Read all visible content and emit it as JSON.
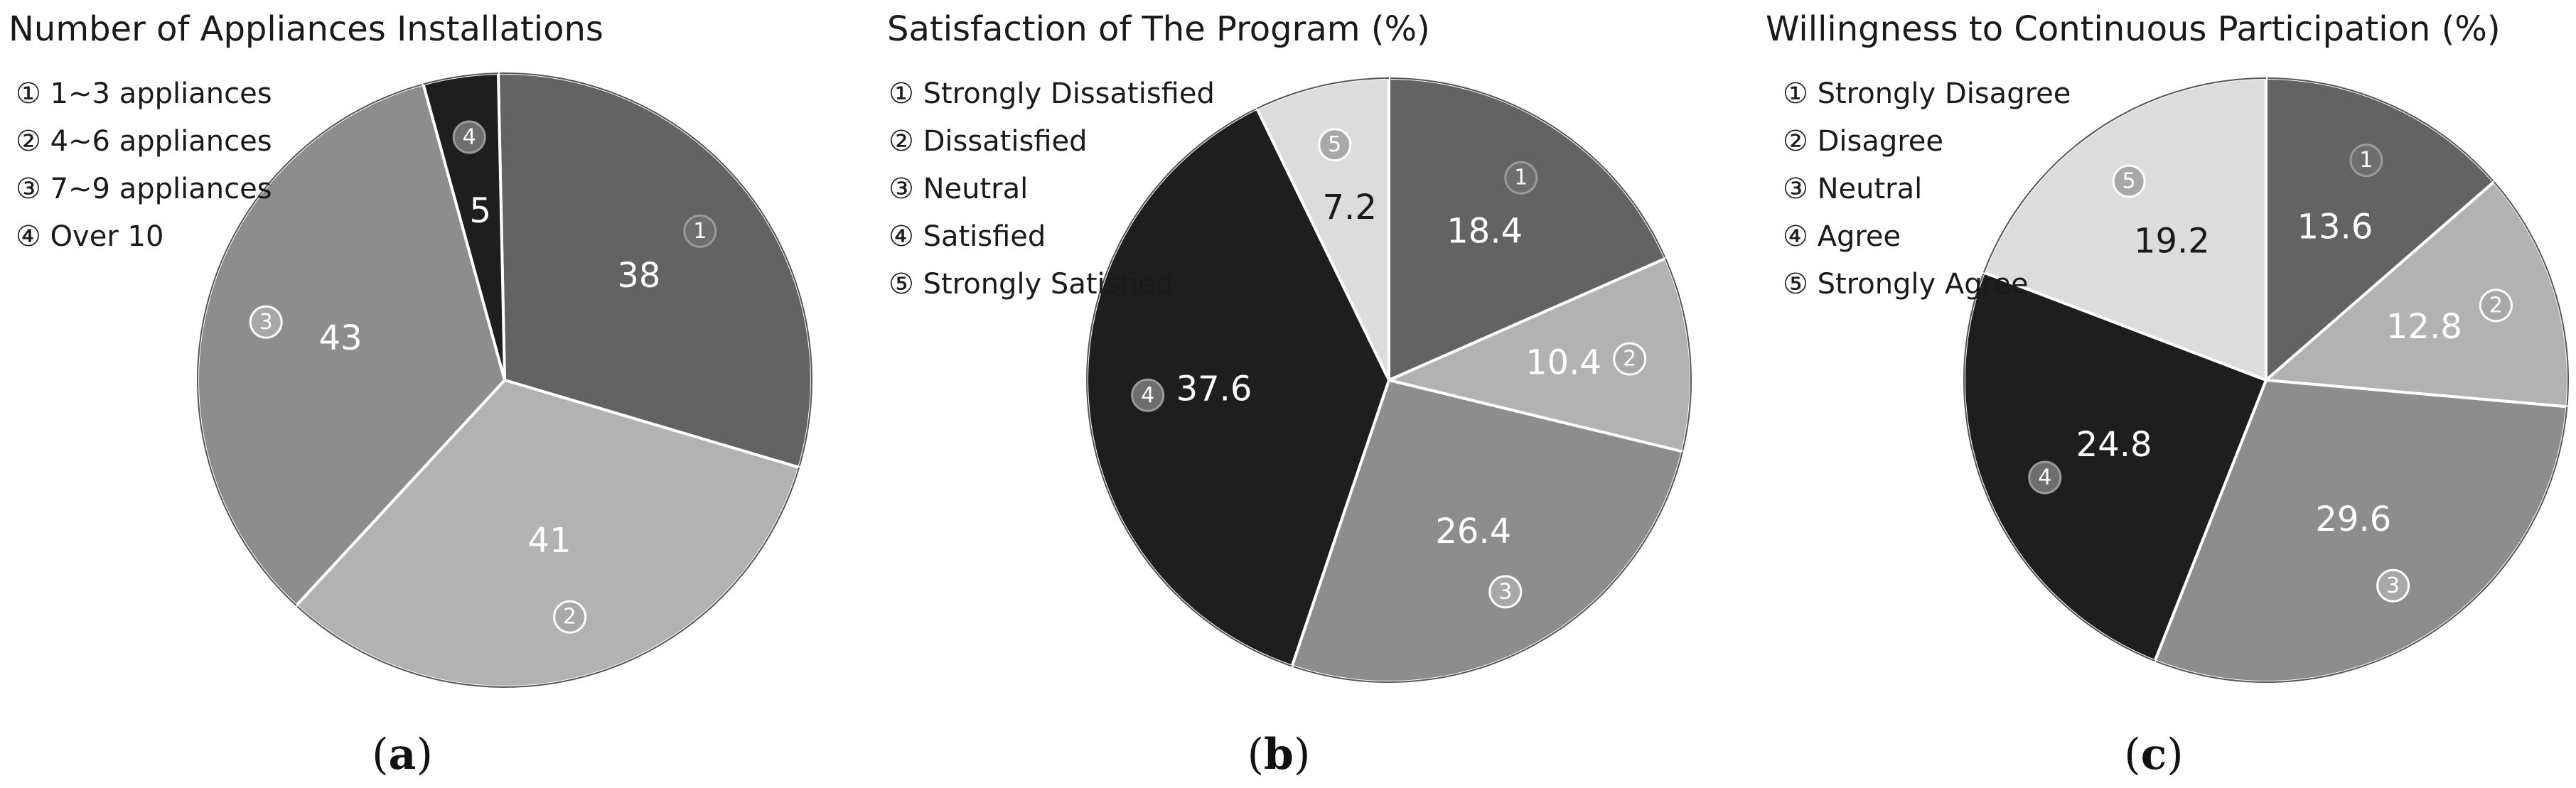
{
  "chart_data": [
    {
      "type": "pie",
      "title": "Number of Appliances Installations",
      "caption": "a",
      "legend": [
        "① 1~3 appliances",
        "② 4~6 appliances",
        "③ 7~9 appliances",
        "④ Over 10"
      ],
      "slices": [
        {
          "marker": "1",
          "label": "1~3 appliances",
          "value": 38,
          "value_text": "38",
          "color": "#636363"
        },
        {
          "marker": "2",
          "label": "4~6 appliances",
          "value": 41,
          "value_text": "41",
          "color": "#b2b2b2"
        },
        {
          "marker": "3",
          "label": "7~9 appliances",
          "value": 43,
          "value_text": "43",
          "color": "#8d8d8d"
        },
        {
          "marker": "4",
          "label": "Over 10",
          "value": 5,
          "value_text": "5",
          "color": "#1e1e1e"
        }
      ]
    },
    {
      "type": "pie",
      "title": "Satisfaction of The Program (%)",
      "caption": "b",
      "legend": [
        "① Strongly Dissatisfied",
        "② Dissatisfied",
        "③ Neutral",
        "④ Satisfied",
        "⑤ Strongly Satisfied"
      ],
      "slices": [
        {
          "marker": "1",
          "label": "Strongly Dissatisfied",
          "value": 18.4,
          "value_text": "18.4",
          "color": "#636363"
        },
        {
          "marker": "2",
          "label": "Dissatisfied",
          "value": 10.4,
          "value_text": "10.4",
          "color": "#b2b2b2"
        },
        {
          "marker": "3",
          "label": "Neutral",
          "value": 26.4,
          "value_text": "26.4",
          "color": "#8d8d8d"
        },
        {
          "marker": "4",
          "label": "Satisfied",
          "value": 37.6,
          "value_text": "37.6",
          "color": "#1e1e1e"
        },
        {
          "marker": "5",
          "label": "Strongly Satisfied",
          "value": 7.2,
          "value_text": "7.2",
          "color": "#dcdcdc"
        }
      ]
    },
    {
      "type": "pie",
      "title": "Willingness to Continuous Participation (%)",
      "caption": "c",
      "legend": [
        "① Strongly Disagree",
        "② Disagree",
        "③ Neutral",
        "④ Agree",
        "⑤ Strongly Agree"
      ],
      "slices": [
        {
          "marker": "1",
          "label": "Strongly Disagree",
          "value": 13.6,
          "value_text": "13.6",
          "color": "#636363"
        },
        {
          "marker": "2",
          "label": "Disagree",
          "value": 12.8,
          "value_text": "12.8",
          "color": "#b2b2b2"
        },
        {
          "marker": "3",
          "label": "Neutral",
          "value": 29.6,
          "value_text": "29.6",
          "color": "#8d8d8d"
        },
        {
          "marker": "4",
          "label": "Agree",
          "value": 24.8,
          "value_text": "24.8",
          "color": "#1e1e1e"
        },
        {
          "marker": "5",
          "label": "Strongly Agree",
          "value": 19.2,
          "value_text": "19.2",
          "color": "#dcdcdc"
        }
      ]
    }
  ]
}
